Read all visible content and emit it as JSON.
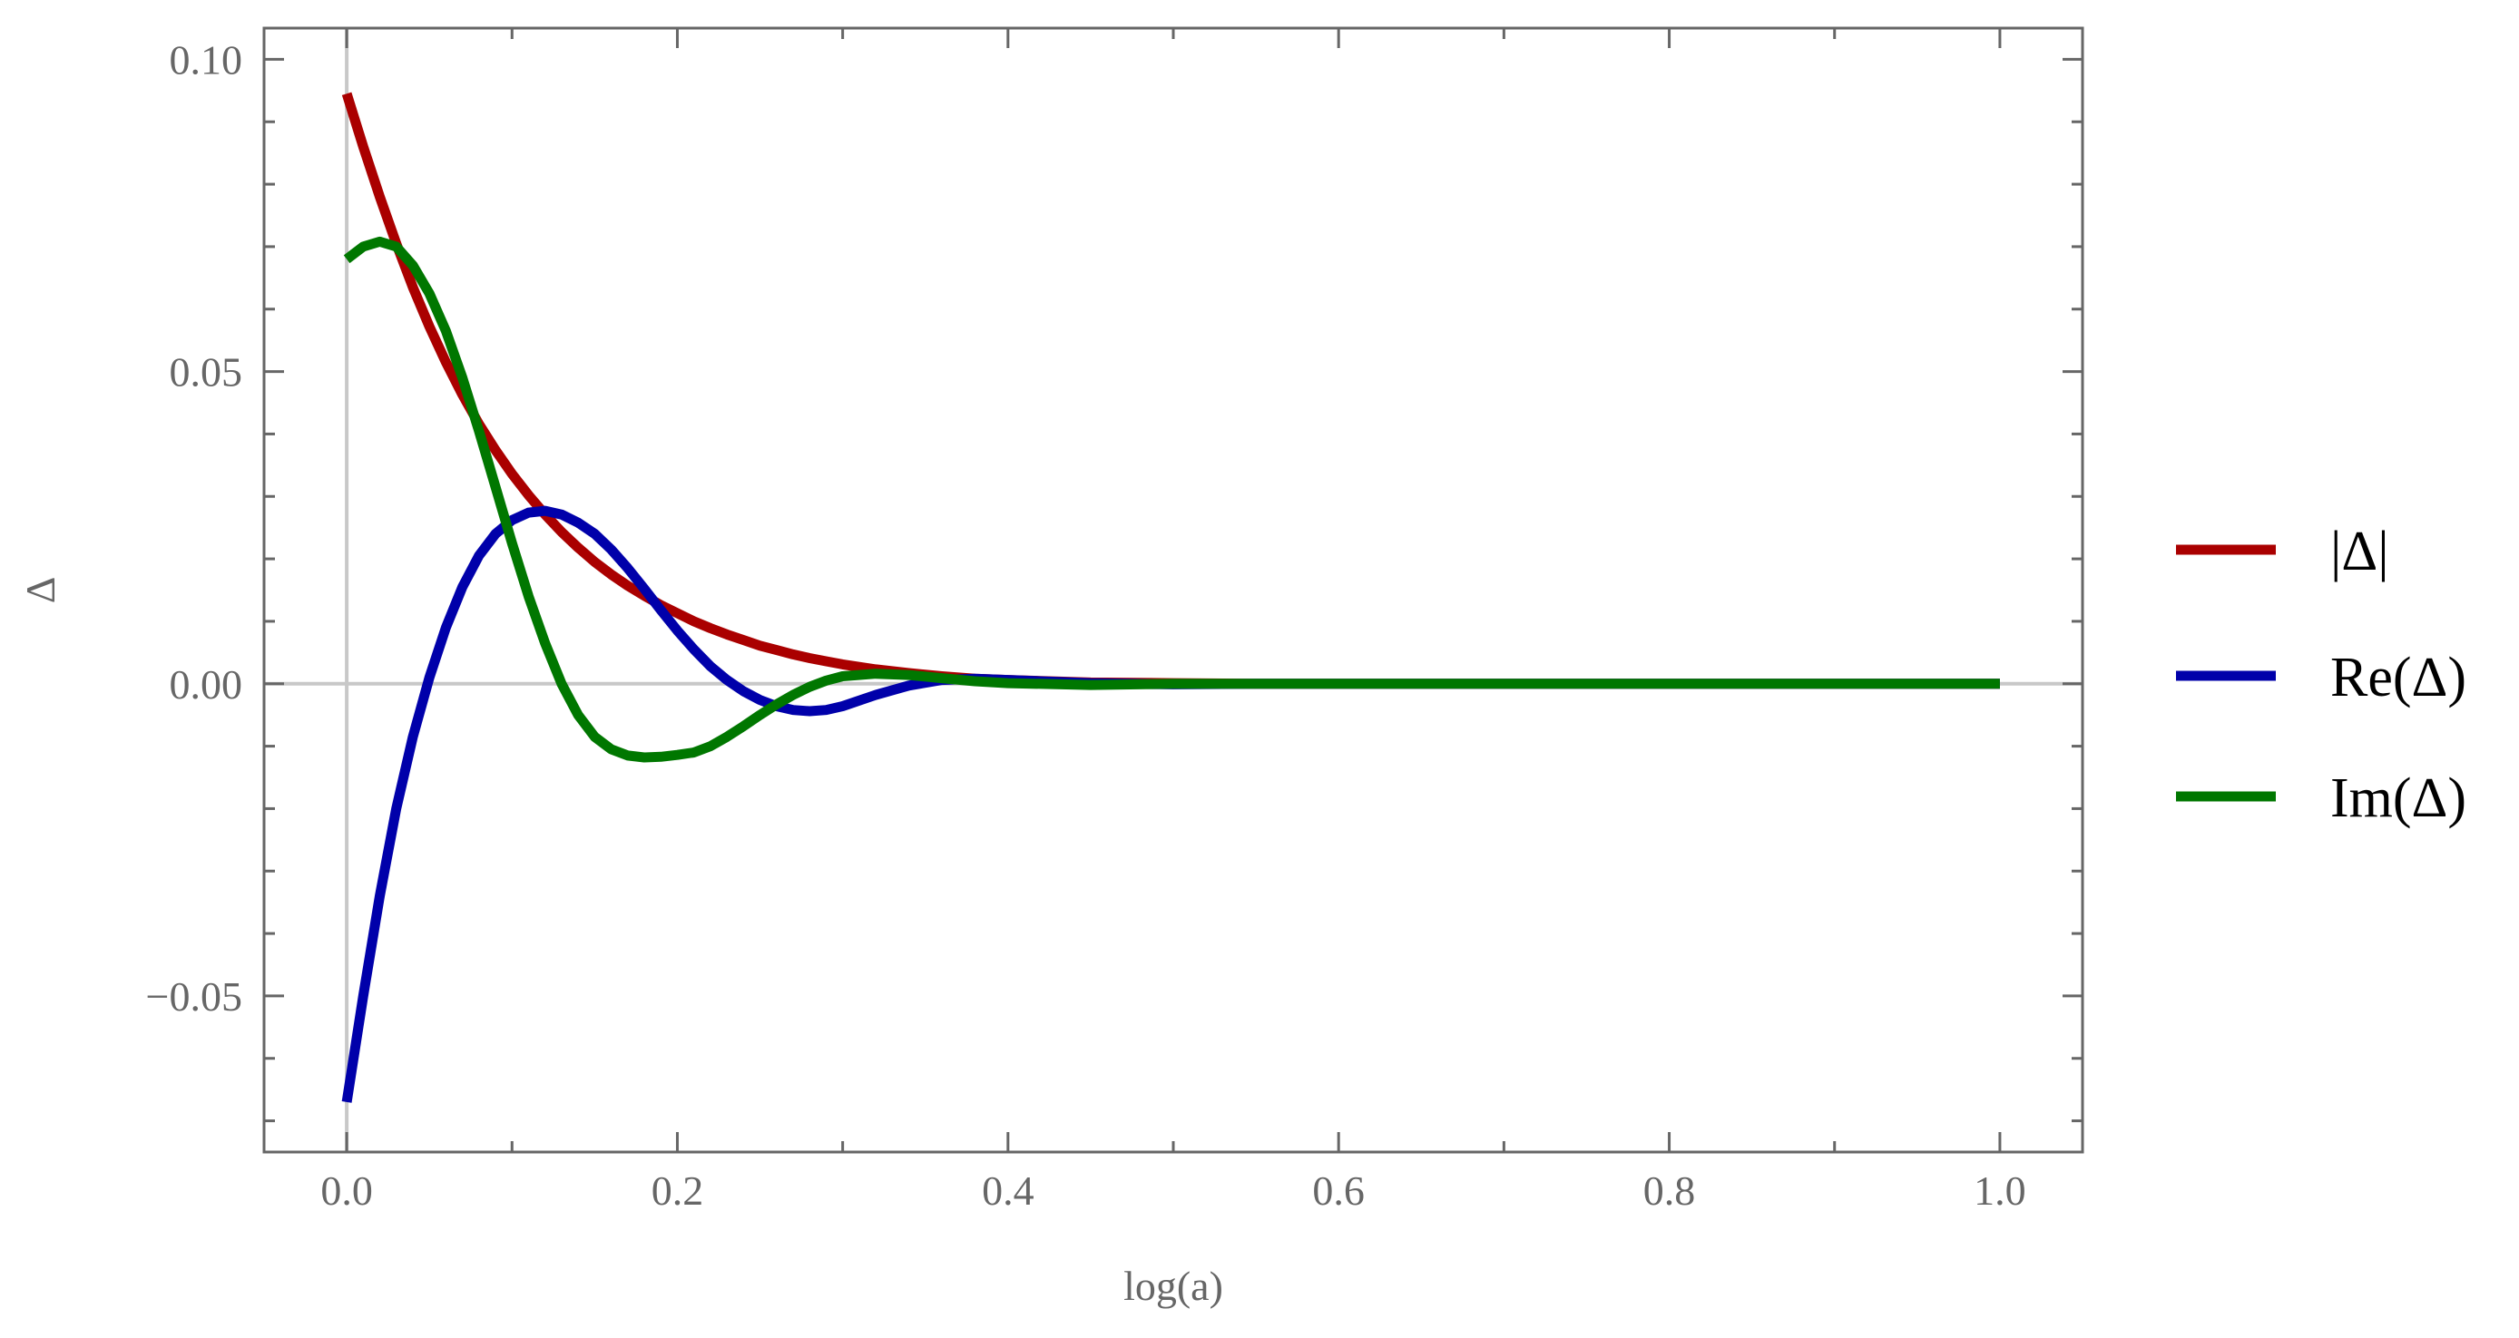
{
  "chart_data": {
    "type": "line",
    "title": "",
    "xlabel": "log(a)",
    "ylabel": "Δ",
    "xlim": [
      -0.05,
      1.05
    ],
    "ylim": [
      -0.075,
      0.105
    ],
    "xticks": [
      "0.0",
      "0.2",
      "0.4",
      "0.6",
      "0.8",
      "1.0"
    ],
    "yticks": [
      "−0.05",
      "0.00",
      "0.05",
      "0.10"
    ],
    "grid": false,
    "legend_position": "right",
    "x": [
      0.0,
      0.01,
      0.02,
      0.03,
      0.04,
      0.05,
      0.06,
      0.07,
      0.08,
      0.09,
      0.1,
      0.11,
      0.12,
      0.13,
      0.14,
      0.15,
      0.16,
      0.17,
      0.18,
      0.19,
      0.2,
      0.21,
      0.22,
      0.23,
      0.24,
      0.25,
      0.26,
      0.27,
      0.28,
      0.29,
      0.3,
      0.32,
      0.34,
      0.36,
      0.38,
      0.4,
      0.45,
      0.5,
      0.55,
      0.6,
      0.7,
      0.8,
      0.9,
      1.0
    ],
    "series": [
      {
        "name": "|Δ|",
        "color": "#aa0000",
        "values": [
          0.0945,
          0.086,
          0.078,
          0.0705,
          0.0635,
          0.0572,
          0.0515,
          0.0463,
          0.0416,
          0.0374,
          0.0336,
          0.0302,
          0.0271,
          0.0243,
          0.0218,
          0.0195,
          0.0175,
          0.0157,
          0.0141,
          0.0126,
          0.0113,
          0.01,
          0.0089,
          0.0079,
          0.007,
          0.0061,
          0.0054,
          0.0047,
          0.0041,
          0.0036,
          0.0031,
          0.0023,
          0.0017,
          0.0012,
          0.0008,
          0.0006,
          0.0002,
          0.0001,
          0.0,
          0.0,
          0.0,
          0.0,
          0.0,
          0.0
        ]
      },
      {
        "name": "Re(Δ)",
        "color": "#0000aa",
        "values": [
          -0.067,
          -0.05,
          -0.034,
          -0.02,
          -0.0085,
          0.001,
          0.009,
          0.0155,
          0.0205,
          0.024,
          0.0262,
          0.0274,
          0.0277,
          0.0271,
          0.0258,
          0.024,
          0.0215,
          0.0185,
          0.0152,
          0.0118,
          0.0085,
          0.0055,
          0.0028,
          0.0006,
          -0.0012,
          -0.0026,
          -0.0036,
          -0.0042,
          -0.0044,
          -0.0042,
          -0.0036,
          -0.0018,
          -0.0003,
          0.0006,
          0.0008,
          0.0006,
          0.0001,
          -0.0001,
          0.0,
          0.0,
          0.0,
          0.0,
          0.0,
          0.0
        ]
      },
      {
        "name": "Im(Δ)",
        "color": "#007700",
        "values": [
          0.068,
          0.07,
          0.0708,
          0.07,
          0.067,
          0.0625,
          0.0565,
          0.049,
          0.0405,
          0.0315,
          0.0225,
          0.014,
          0.0065,
          0.0,
          -0.005,
          -0.0085,
          -0.0105,
          -0.0115,
          -0.0118,
          -0.0117,
          -0.0114,
          -0.011,
          -0.01,
          -0.0085,
          -0.0068,
          -0.005,
          -0.0033,
          -0.0018,
          -0.0005,
          0.0005,
          0.0012,
          0.0016,
          0.0014,
          0.0009,
          0.0004,
          0.0001,
          -0.0002,
          0.0,
          0.0,
          0.0,
          0.0,
          0.0,
          0.0,
          0.0
        ]
      }
    ]
  }
}
